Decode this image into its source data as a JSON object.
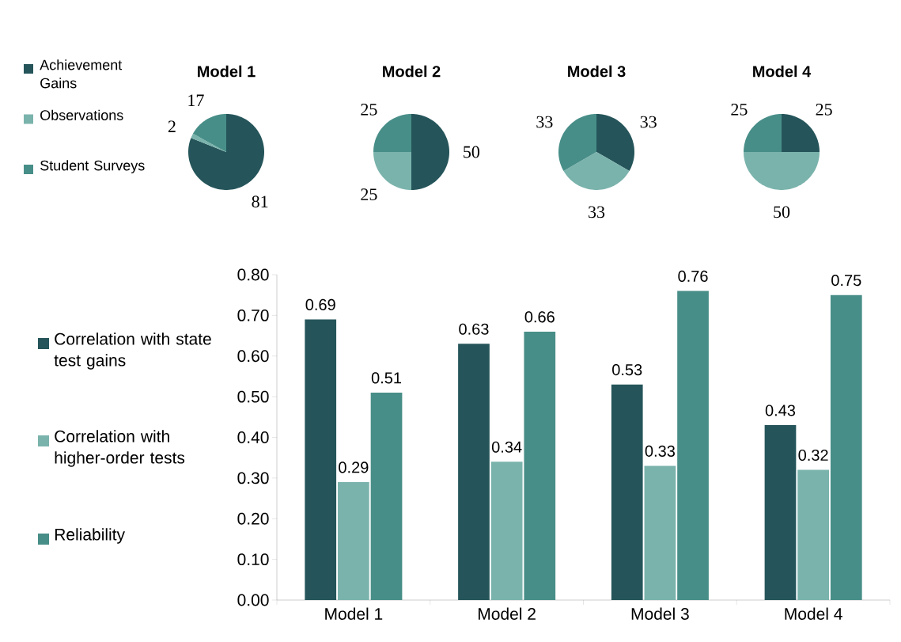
{
  "chart_data": [
    {
      "type": "pie",
      "title": "Model 1",
      "categories": [
        "Achievement Gains",
        "Observations",
        "Student Surveys"
      ],
      "values": [
        81,
        2,
        17
      ],
      "colors": [
        "#25555a",
        "#7ab3ac",
        "#488e88"
      ],
      "data_labels": true,
      "legend": "left"
    },
    {
      "type": "pie",
      "title": "Model 2",
      "categories": [
        null,
        null,
        null
      ],
      "values": [
        50,
        25,
        25
      ],
      "colors": [
        "#25555a",
        "#7ab3ac",
        "#488e88"
      ],
      "data_labels": true
    },
    {
      "type": "pie",
      "title": "Model 3",
      "categories": [
        null,
        null,
        null
      ],
      "values": [
        33,
        33,
        33
      ],
      "colors": [
        "#25555a",
        "#7ab3ac",
        "#488e88"
      ],
      "data_labels": true
    },
    {
      "type": "pie",
      "title": "Model 4",
      "categories": [
        null,
        null,
        null
      ],
      "values": [
        25,
        50,
        25
      ],
      "colors": [
        "#25555a",
        "#7ab3ac",
        "#488e88"
      ],
      "data_labels": true
    },
    {
      "type": "bar",
      "categories": [
        "Model 1",
        "Model 2",
        "Model 3",
        "Model 4"
      ],
      "series": [
        {
          "name": "Correlation with state test gains",
          "color": "#25555a",
          "values": [
            0.69,
            0.63,
            0.53,
            0.43
          ]
        },
        {
          "name": "Correlation with higher-order tests",
          "color": "#7ab3ac",
          "values": [
            0.29,
            0.34,
            0.33,
            0.32
          ]
        },
        {
          "name": "Reliability",
          "color": "#488e88",
          "values": [
            0.51,
            0.66,
            0.76,
            0.75
          ]
        }
      ],
      "ylim": [
        0,
        0.8
      ],
      "yticks": [
        {
          "value": 0,
          "label": "0.00"
        },
        {
          "value": 0.1,
          "label": "0.10"
        },
        {
          "value": 0.2,
          "label": "0.20"
        },
        {
          "value": 0.3,
          "label": "0.30"
        },
        {
          "value": 0.4,
          "label": "0.40"
        },
        {
          "value": 0.5,
          "label": "0.50"
        },
        {
          "value": 0.6,
          "label": "0.60"
        },
        {
          "value": 0.7,
          "label": "0.70"
        },
        {
          "value": 0.8,
          "label": "0.80"
        }
      ],
      "data_labels": true,
      "legend": "left"
    }
  ]
}
